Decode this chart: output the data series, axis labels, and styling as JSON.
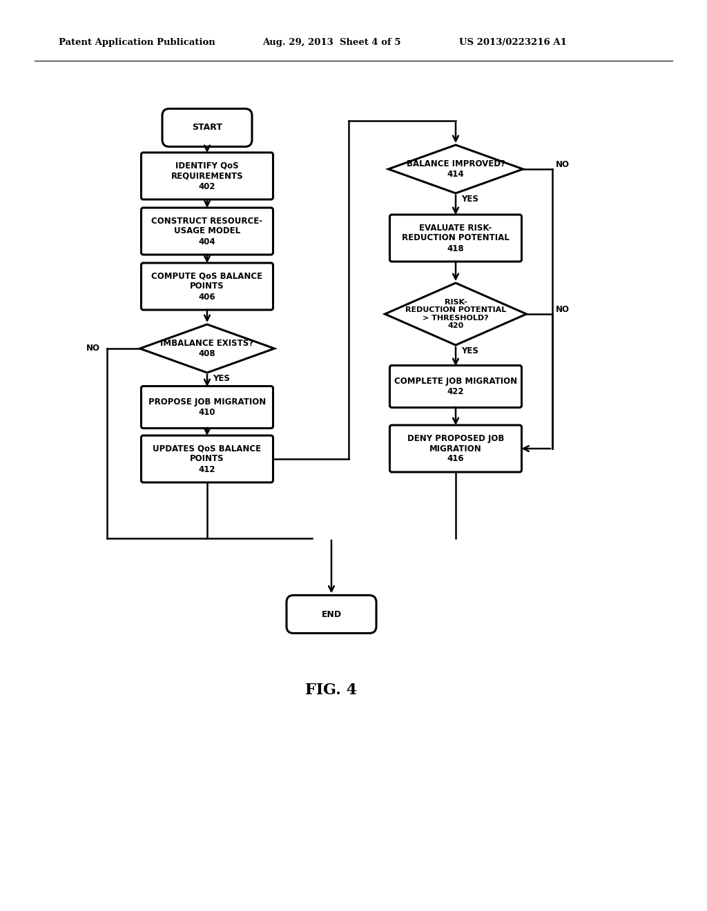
{
  "bg_color": "#ffffff",
  "header_left": "Patent Application Publication",
  "header_mid": "Aug. 29, 2013  Sheet 4 of 5",
  "header_right": "US 2013/0223216 A1",
  "fig_label": "FIG. 4",
  "lw_thick": 2.2,
  "lw_thin": 1.6,
  "lw_connector": 1.8
}
